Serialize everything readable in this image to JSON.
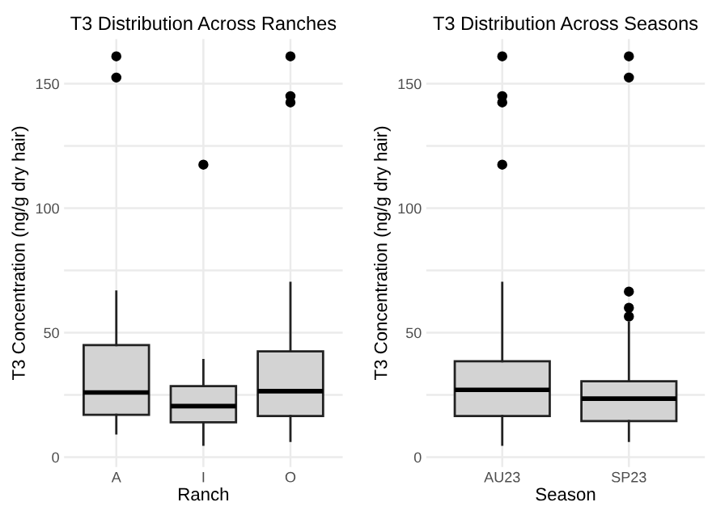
{
  "chart_data": [
    {
      "type": "box",
      "title": "T3 Distribution Across Ranches",
      "xlabel": "Ranch",
      "ylabel": "T3 Concentration (ng/g dry hair)",
      "categories": [
        "A",
        "I",
        "O"
      ],
      "color": "#d3d3d3",
      "boxes": [
        {
          "low": 9.5,
          "q1": 17,
          "median": 26,
          "q3": 45,
          "high": 66.5,
          "outliers": [
            152.5,
            161
          ]
        },
        {
          "low": 5,
          "q1": 14,
          "median": 20.5,
          "q3": 28.5,
          "high": 39,
          "outliers": [
            117.5
          ]
        },
        {
          "low": 6.5,
          "q1": 16.5,
          "median": 26.5,
          "q3": 42.5,
          "high": 70,
          "outliers": [
            142.5,
            145,
            161
          ]
        }
      ],
      "ylim": [
        -4,
        168
      ],
      "yticks": [
        0,
        {
          "value": 25,
          "label": null
        },
        50,
        {
          "value": 75,
          "label": null
        },
        100,
        {
          "value": 125,
          "label": null
        },
        150
      ],
      "grid": true
    },
    {
      "type": "box",
      "title": "T3 Distribution Across Seasons",
      "xlabel": "Season",
      "ylabel": "T3 Concentration (ng/g dry hair)",
      "categories": [
        "AU23",
        "SP23"
      ],
      "color": "#d3d3d3",
      "boxes": [
        {
          "low": 5,
          "q1": 16.5,
          "median": 27,
          "q3": 38.5,
          "high": 70,
          "outliers": [
            117.5,
            142.5,
            145,
            161
          ]
        },
        {
          "low": 6.5,
          "q1": 14.5,
          "median": 23.5,
          "q3": 30.5,
          "high": 54,
          "outliers": [
            56.5,
            60,
            66.5,
            152.5,
            161
          ]
        }
      ],
      "ylim": [
        -4,
        168
      ],
      "yticks": [
        0,
        {
          "value": 25,
          "label": null
        },
        50,
        {
          "value": 75,
          "label": null
        },
        100,
        {
          "value": 125,
          "label": null
        },
        150
      ],
      "grid": true
    }
  ]
}
